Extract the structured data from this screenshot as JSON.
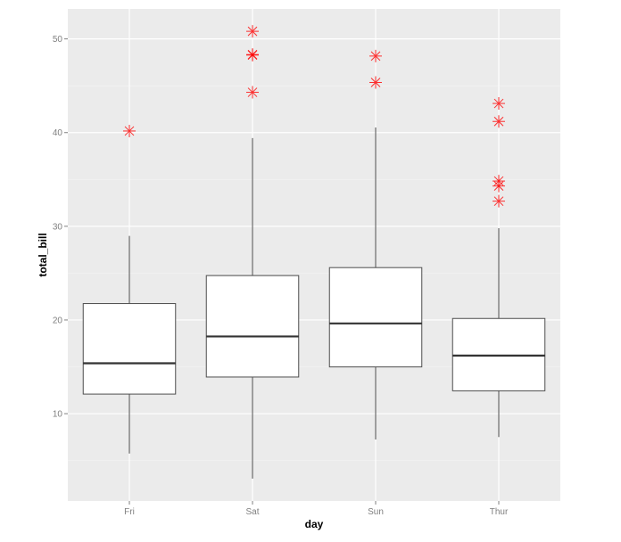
{
  "chart_data": {
    "type": "box",
    "xlabel": "day",
    "ylabel": "total_bill",
    "ylim": [
      0.68,
      53.2
    ],
    "yticks": [
      10,
      20,
      30,
      40,
      50
    ],
    "categories": [
      "Fri",
      "Sat",
      "Sun",
      "Thur"
    ],
    "grid": true,
    "colors": {
      "panel": "#ebebeb",
      "grid": "#ffffff",
      "box_fill": "#ffffff",
      "box_line": "#4d4d4d",
      "outlier": "#ff0000"
    },
    "outlier_shape": "asterisk",
    "boxes": [
      {
        "day": "Fri",
        "lower_whisker": 5.75,
        "q1": 12.09,
        "median": 15.38,
        "q3": 21.75,
        "upper_whisker": 28.97,
        "outliers": [
          40.17
        ]
      },
      {
        "day": "Sat",
        "lower_whisker": 3.07,
        "q1": 13.91,
        "median": 18.24,
        "q3": 24.74,
        "upper_whisker": 39.42,
        "outliers": [
          50.81,
          48.33,
          48.27,
          44.3
        ]
      },
      {
        "day": "Sun",
        "lower_whisker": 7.25,
        "q1": 14.99,
        "median": 19.63,
        "q3": 25.59,
        "upper_whisker": 40.55,
        "outliers": [
          48.17,
          45.35
        ]
      },
      {
        "day": "Thur",
        "lower_whisker": 7.51,
        "q1": 12.44,
        "median": 16.2,
        "q3": 20.16,
        "upper_whisker": 29.8,
        "outliers": [
          43.11,
          41.19,
          34.83,
          34.3,
          32.68
        ]
      }
    ]
  }
}
